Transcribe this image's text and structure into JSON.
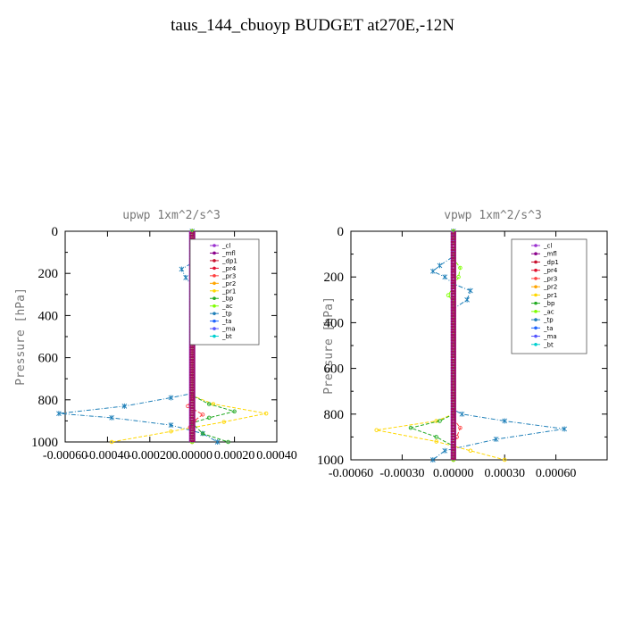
{
  "title": "taus_144_cbuoyp  BUDGET at270E,-12N",
  "legend_items": [
    {
      "name": "_cl",
      "color": "#9b30d0"
    },
    {
      "name": "_mfl",
      "color": "#8b008b"
    },
    {
      "name": "_dp1",
      "color": "#c8102e"
    },
    {
      "name": "_pr4",
      "color": "#e01030"
    },
    {
      "name": "_pr3",
      "color": "#ff4040"
    },
    {
      "name": "_pr2",
      "color": "#ffa500"
    },
    {
      "name": "_pr1",
      "color": "#ffd700"
    },
    {
      "name": "_bp",
      "color": "#22aa22"
    },
    {
      "name": "_ac",
      "color": "#7fff00"
    },
    {
      "name": "_tp",
      "color": "#1e7fb8"
    },
    {
      "name": "_ta",
      "color": "#1e64ff"
    },
    {
      "name": "_ma",
      "color": "#5555ff"
    },
    {
      "name": "_bt",
      "color": "#00d0d0"
    }
  ],
  "chart_data": [
    {
      "type": "line",
      "title": "upwp  1xm^2/s^3",
      "ylabel": "Pressure [hPa]",
      "xlim": [
        -0.0006,
        0.0004
      ],
      "ylim": [
        1000,
        0
      ],
      "x_tick_labels": [
        "-0.00060",
        "-0.00040",
        "-0.00020",
        "0.00000",
        "0.00020",
        "0.00040"
      ],
      "x_tick_values": [
        -0.0006,
        -0.0004,
        -0.0002,
        0.0,
        0.0002,
        0.0004
      ],
      "y_ticks": [
        0,
        200,
        400,
        600,
        800,
        1000
      ],
      "legend_position": "top-right",
      "series": [
        {
          "name": "_tp",
          "points": [
            [
              0,
              0
            ],
            [
              3e-05,
              100
            ],
            [
              0,
              150
            ],
            [
              -5e-05,
              180
            ],
            [
              -3e-05,
              220
            ],
            [
              0,
              260
            ],
            [
              0,
              700
            ],
            [
              0,
              770
            ],
            [
              -0.0001,
              790
            ],
            [
              -0.00032,
              830
            ],
            [
              -0.00063,
              865
            ],
            [
              -0.00038,
              885
            ],
            [
              -0.0001,
              920
            ],
            [
              5e-05,
              960
            ],
            [
              0.00012,
              1000
            ]
          ]
        },
        {
          "name": "_pr1",
          "points": [
            [
              0,
              0
            ],
            [
              0,
              130
            ],
            [
              4e-05,
              160
            ],
            [
              5e-05,
              200
            ],
            [
              2e-05,
              240
            ],
            [
              0,
              270
            ],
            [
              0,
              780
            ],
            [
              0.0001,
              820
            ],
            [
              0.00035,
              865
            ],
            [
              0.00015,
              905
            ],
            [
              -0.0001,
              950
            ],
            [
              -0.00038,
              1000
            ]
          ]
        },
        {
          "name": "_bp",
          "points": [
            [
              0,
              0
            ],
            [
              0,
              780
            ],
            [
              8e-05,
              820
            ],
            [
              0.0002,
              855
            ],
            [
              8e-05,
              885
            ],
            [
              0,
              910
            ],
            [
              5e-05,
              960
            ],
            [
              0.00017,
              1000
            ]
          ]
        },
        {
          "name": "_pr3",
          "points": [
            [
              0,
              0
            ],
            [
              0,
              790
            ],
            [
              -2e-05,
              830
            ],
            [
              5e-05,
              870
            ],
            [
              1e-05,
              900
            ],
            [
              -1e-05,
              930
            ],
            [
              0,
              1000
            ]
          ]
        },
        {
          "name": "_ac",
          "points": [
            [
              0,
              0
            ],
            [
              0,
              130
            ],
            [
              3e-05,
              170
            ],
            [
              2e-05,
              220
            ],
            [
              0,
              260
            ],
            [
              0,
              1000
            ]
          ]
        },
        {
          "name": "_mfl",
          "points": [
            [
              1e-05,
              0
            ],
            [
              1e-05,
              1000
            ]
          ]
        },
        {
          "name": "_cl",
          "points": [
            [
              -1e-05,
              0
            ],
            [
              -1e-05,
              1000
            ]
          ]
        }
      ]
    },
    {
      "type": "line",
      "title": "vpwp  1xm^2/s^3",
      "ylabel": "Pressure [hPa]",
      "xlim": [
        -0.0006,
        0.0009
      ],
      "ylim": [
        1000,
        0
      ],
      "x_tick_labels": [
        "-0.00060",
        "-0.00030",
        "0.00000",
        "0.00030",
        "0.00060"
      ],
      "x_tick_values": [
        -0.0006,
        -0.0003,
        0.0,
        0.0003,
        0.0006
      ],
      "y_ticks": [
        0,
        200,
        400,
        600,
        800,
        1000
      ],
      "legend_position": "top-right",
      "series": [
        {
          "name": "_tp",
          "points": [
            [
              0,
              0
            ],
            [
              0,
              110
            ],
            [
              -8e-05,
              150
            ],
            [
              -0.00012,
              175
            ],
            [
              -5e-05,
              200
            ],
            [
              0,
              230
            ],
            [
              0.0001,
              260
            ],
            [
              8e-05,
              300
            ],
            [
              0,
              340
            ],
            [
              0,
              780
            ],
            [
              5e-05,
              800
            ],
            [
              0.0003,
              830
            ],
            [
              0.00065,
              865
            ],
            [
              0.00025,
              910
            ],
            [
              -5e-05,
              960
            ],
            [
              -0.00012,
              1000
            ]
          ]
        },
        {
          "name": "_pr1",
          "points": [
            [
              0,
              0
            ],
            [
              0,
              800
            ],
            [
              -0.0001,
              830
            ],
            [
              -0.00045,
              870
            ],
            [
              -0.0001,
              920
            ],
            [
              0.0001,
              960
            ],
            [
              0.0003,
              1000
            ]
          ]
        },
        {
          "name": "_bp",
          "points": [
            [
              0,
              0
            ],
            [
              0,
              800
            ],
            [
              -8e-05,
              830
            ],
            [
              -0.00025,
              860
            ],
            [
              -0.0001,
              900
            ],
            [
              0,
              940
            ],
            [
              0,
              1000
            ]
          ]
        },
        {
          "name": "_pr3",
          "points": [
            [
              0,
              0
            ],
            [
              0,
              820
            ],
            [
              4e-05,
              860
            ],
            [
              2e-05,
              900
            ],
            [
              0,
              940
            ],
            [
              0,
              1000
            ]
          ]
        },
        {
          "name": "_ac",
          "points": [
            [
              0,
              0
            ],
            [
              0,
              120
            ],
            [
              4e-05,
              160
            ],
            [
              3e-05,
              200
            ],
            [
              0,
              240
            ],
            [
              -3e-05,
              280
            ],
            [
              0,
              310
            ],
            [
              0,
              1000
            ]
          ]
        },
        {
          "name": "_mfl",
          "points": [
            [
              1e-05,
              0
            ],
            [
              1e-05,
              1000
            ]
          ]
        },
        {
          "name": "_cl",
          "points": [
            [
              -1e-05,
              0
            ],
            [
              -1e-05,
              1000
            ]
          ]
        }
      ]
    }
  ]
}
